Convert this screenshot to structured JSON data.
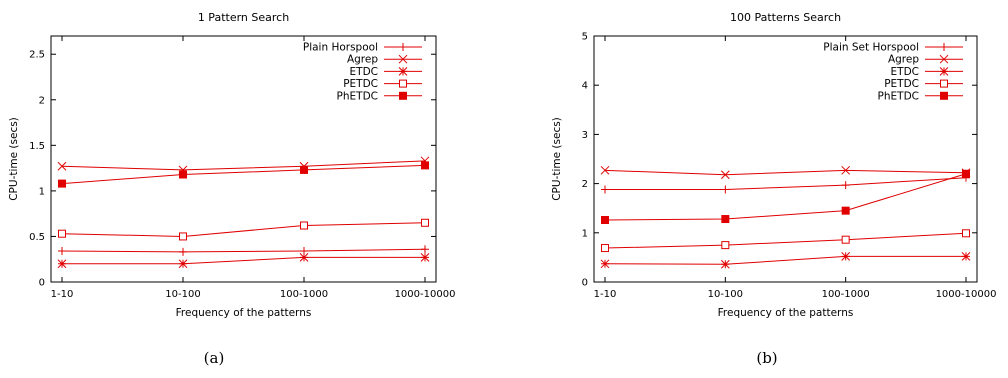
{
  "series_color": "#e00000",
  "chart_data": [
    {
      "type": "line",
      "title": "1 Pattern Search",
      "xlabel": "Frequency of the patterns",
      "ylabel": "CPU-time (secs)",
      "caption": "(a)",
      "categories": [
        "1-10",
        "10-100",
        "100-1000",
        "1000-10000"
      ],
      "ylim": [
        0,
        2.7
      ],
      "yticks": [
        0,
        0.5,
        1,
        1.5,
        2,
        2.5
      ],
      "ytick_labels": [
        "0",
        "0.5",
        "1",
        "1.5",
        "2",
        "2.5"
      ],
      "legend_position": "top-right",
      "grid": false,
      "series": [
        {
          "name": "Plain Horspool",
          "marker": "plus",
          "values": [
            0.34,
            0.33,
            0.34,
            0.36
          ]
        },
        {
          "name": "Agrep",
          "marker": "cross",
          "values": [
            1.27,
            1.23,
            1.27,
            1.33
          ]
        },
        {
          "name": "ETDC",
          "marker": "star",
          "values": [
            0.2,
            0.2,
            0.27,
            0.27
          ]
        },
        {
          "name": "PETDC",
          "marker": "open-square",
          "values": [
            0.53,
            0.5,
            0.62,
            0.65
          ]
        },
        {
          "name": "PhETDC",
          "marker": "filled-square",
          "values": [
            1.08,
            1.18,
            1.23,
            1.28
          ]
        }
      ]
    },
    {
      "type": "line",
      "title": "100 Patterns Search",
      "xlabel": "Frequency of the patterns",
      "ylabel": "CPU-time (secs)",
      "caption": "(b)",
      "categories": [
        "1-10",
        "10-100",
        "100-1000",
        "1000-10000"
      ],
      "ylim": [
        0,
        5
      ],
      "yticks": [
        0,
        1,
        2,
        3,
        4,
        5
      ],
      "ytick_labels": [
        "0",
        "1",
        "2",
        "3",
        "4",
        "5"
      ],
      "legend_position": "top-right",
      "grid": false,
      "series": [
        {
          "name": "Plain Set Horspool",
          "marker": "plus",
          "values": [
            1.88,
            1.88,
            1.97,
            2.12
          ]
        },
        {
          "name": "Agrep",
          "marker": "cross",
          "values": [
            2.27,
            2.18,
            2.27,
            2.22
          ]
        },
        {
          "name": "ETDC",
          "marker": "star",
          "values": [
            0.37,
            0.36,
            0.52,
            0.52
          ]
        },
        {
          "name": "PETDC",
          "marker": "open-square",
          "values": [
            0.69,
            0.75,
            0.86,
            0.99
          ]
        },
        {
          "name": "PhETDC",
          "marker": "filled-square",
          "values": [
            1.26,
            1.28,
            1.45,
            2.2
          ]
        }
      ]
    }
  ]
}
